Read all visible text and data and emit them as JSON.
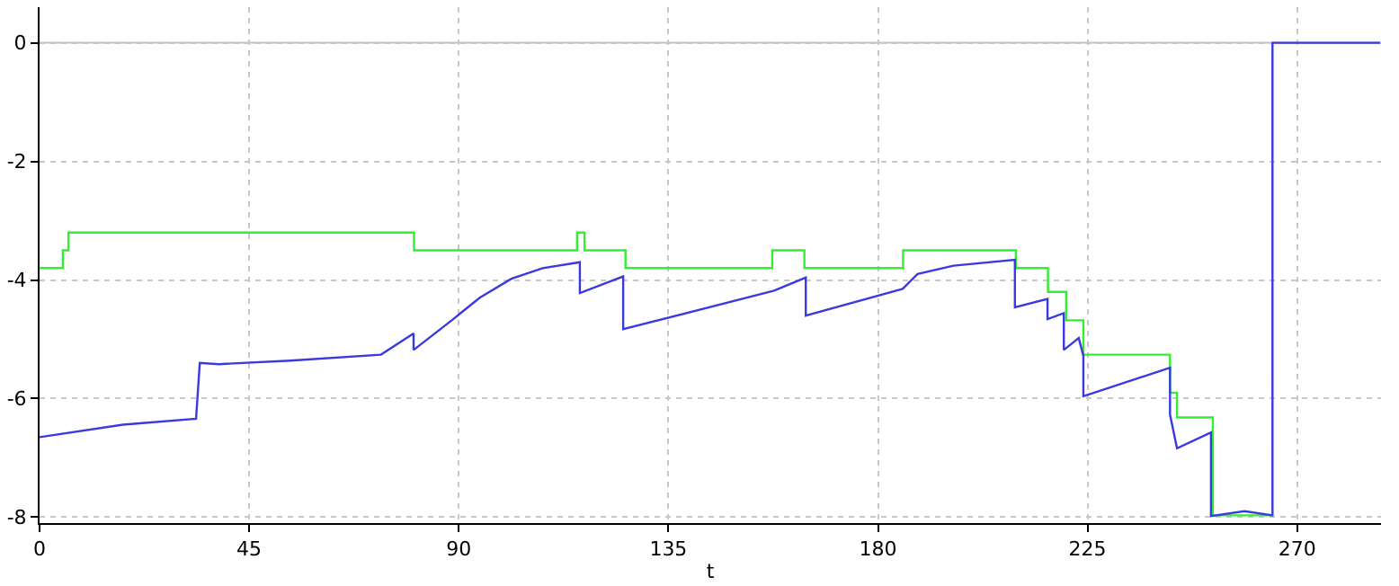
{
  "chart_data": {
    "type": "line",
    "xlabel": "t",
    "xlim": [
      0,
      288
    ],
    "xticks": [
      0,
      45,
      90,
      135,
      180,
      225,
      270
    ],
    "ylim": [
      -8.1,
      0.6
    ],
    "yticks": [
      -8,
      -6,
      -4,
      -2,
      0
    ],
    "grid": true,
    "marker": "none",
    "line_style": "solid",
    "ref_lines": [
      {
        "axis": "y",
        "value": 0,
        "color": "#c0c0c0"
      }
    ],
    "series": [
      {
        "color": "#33ee33",
        "x": [
          0,
          5,
          5,
          6.2,
          6.2,
          80.4,
          80.4,
          115.4,
          115.4,
          117,
          117,
          125.8,
          125.8,
          157.3,
          157.3,
          164.2,
          164.2,
          185.4,
          185.4,
          209.6,
          209.6,
          216.5,
          216.5,
          220.4,
          220.4,
          224.1,
          224.1,
          242.7,
          242.7,
          244.2,
          244.2,
          251.9,
          251.9,
          264.6
        ],
        "values": [
          -3.8,
          -3.8,
          -3.5,
          -3.5,
          -3.2,
          -3.2,
          -3.5,
          -3.5,
          -3.2,
          -3.2,
          -3.5,
          -3.5,
          -3.8,
          -3.8,
          -3.5,
          -3.5,
          -3.8,
          -3.8,
          -3.5,
          -3.5,
          -3.8,
          -3.8,
          -4.2,
          -4.2,
          -4.68,
          -4.68,
          -5.26,
          -5.26,
          -5.9,
          -5.9,
          -6.32,
          -6.32,
          -7.97,
          -7.97
        ]
      },
      {
        "color": "#3a3ae0",
        "x": [
          0,
          17.9,
          33.6,
          34.4,
          38.5,
          53.8,
          73.3,
          80.3,
          80.3,
          88.5,
          94.5,
          101.3,
          108.0,
          116.0,
          116.0,
          125.3,
          125.3,
          157.7,
          164.5,
          164.5,
          185.3,
          188.5,
          196.2,
          209.4,
          209.4,
          216.4,
          216.4,
          219.9,
          219.9,
          223.1,
          224.1,
          224.1,
          242.7,
          242.7,
          244.2,
          251.5,
          251.5,
          258.7,
          264.7,
          264.7,
          287.8
        ],
        "values": [
          -6.65,
          -6.44,
          -6.34,
          -5.4,
          -5.42,
          -5.36,
          -5.26,
          -4.9,
          -5.18,
          -4.68,
          -4.3,
          -3.98,
          -3.8,
          -3.7,
          -4.22,
          -3.94,
          -4.83,
          -4.18,
          -3.96,
          -4.6,
          -4.15,
          -3.9,
          -3.76,
          -3.66,
          -4.46,
          -4.32,
          -4.66,
          -4.56,
          -5.18,
          -4.98,
          -5.28,
          -5.96,
          -5.48,
          -6.27,
          -6.84,
          -6.57,
          -7.98,
          -7.9,
          -7.97,
          0,
          0
        ]
      }
    ]
  }
}
